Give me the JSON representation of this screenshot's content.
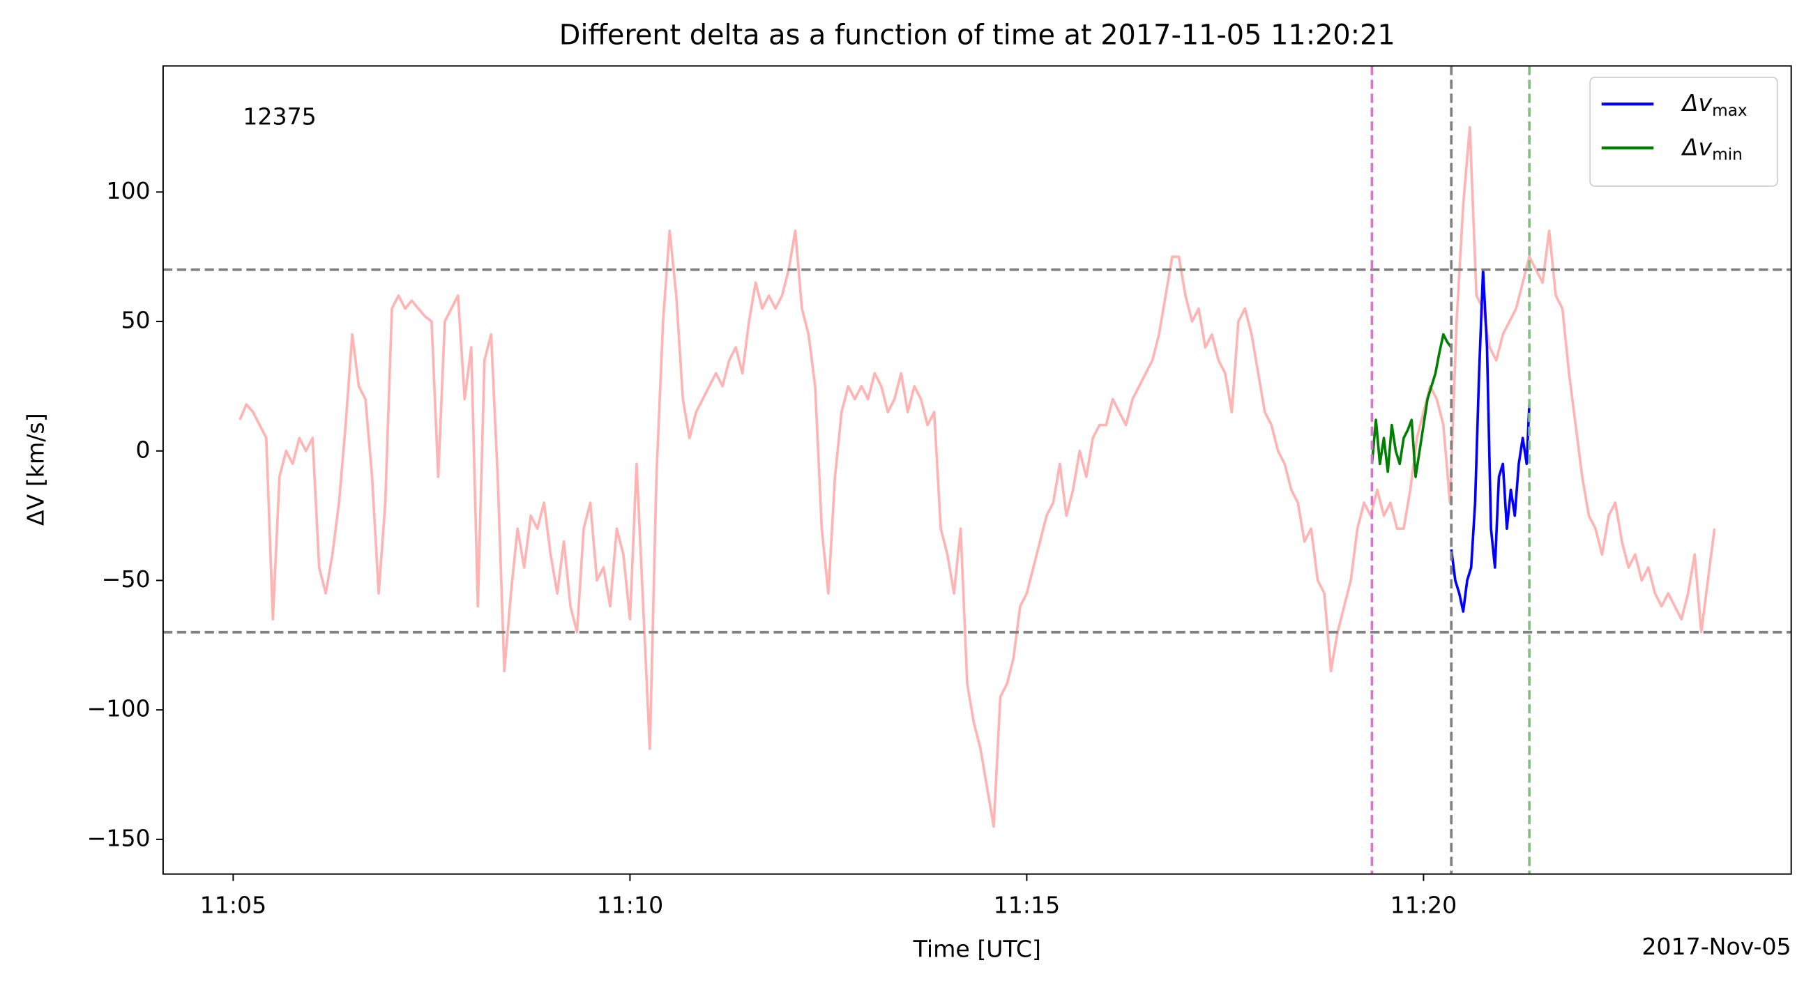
{
  "chart_data": {
    "type": "line",
    "title": "Different delta as a function of time at 2017-11-05 11:20:21",
    "xlabel": "Time [UTC]",
    "ylabel": "ΔV [km/s]",
    "date_label": "2017-Nov-05",
    "annotation": {
      "text": "12375",
      "color": "#ff0000"
    },
    "xlim": [
      "11:04:07",
      "11:24:38"
    ],
    "ylim": [
      -163.4,
      148.7
    ],
    "xticks": [
      {
        "value": "11:05:00",
        "label": "11:05"
      },
      {
        "value": "11:10:00",
        "label": "11:10"
      },
      {
        "value": "11:15:00",
        "label": "11:15"
      },
      {
        "value": "11:20:00",
        "label": "11:20"
      }
    ],
    "yticks": [
      {
        "value": -150,
        "label": "−150"
      },
      {
        "value": -100,
        "label": "−100"
      },
      {
        "value": -50,
        "label": "−50"
      },
      0,
      50,
      100
    ],
    "legend": "upper right",
    "hlines": [
      {
        "y": 70,
        "color": "#808080"
      },
      {
        "y": -70,
        "color": "#808080"
      }
    ],
    "vlines": [
      {
        "x": "11:19:21",
        "color": "#da70d6"
      },
      {
        "x": "11:20:21",
        "color": "#808080"
      },
      {
        "x": "11:21:20",
        "color": "#80c080"
      }
    ],
    "series": [
      {
        "color": "#ffb3b3",
        "x": [
          "11:05:05",
          "11:05:10",
          "11:05:15",
          "11:05:20",
          "11:05:25",
          "11:05:30",
          "11:05:35",
          "11:05:40",
          "11:05:45",
          "11:05:50",
          "11:05:55",
          "11:06:00",
          "11:06:05",
          "11:06:10",
          "11:06:15",
          "11:06:20",
          "11:06:25",
          "11:06:30",
          "11:06:35",
          "11:06:40",
          "11:06:45",
          "11:06:50",
          "11:06:55",
          "11:07:00",
          "11:07:05",
          "11:07:10",
          "11:07:15",
          "11:07:20",
          "11:07:25",
          "11:07:30",
          "11:07:35",
          "11:07:40",
          "11:07:45",
          "11:07:50",
          "11:07:55",
          "11:08:00",
          "11:08:05",
          "11:08:10",
          "11:08:15",
          "11:08:20",
          "11:08:25",
          "11:08:30",
          "11:08:35",
          "11:08:40",
          "11:08:45",
          "11:08:50",
          "11:08:55",
          "11:09:00",
          "11:09:05",
          "11:09:10",
          "11:09:15",
          "11:09:20",
          "11:09:25",
          "11:09:30",
          "11:09:35",
          "11:09:40",
          "11:09:45",
          "11:09:50",
          "11:09:55",
          "11:10:00",
          "11:10:05",
          "11:10:10",
          "11:10:15",
          "11:10:20",
          "11:10:25",
          "11:10:30",
          "11:10:35",
          "11:10:40",
          "11:10:45",
          "11:10:50",
          "11:10:55",
          "11:11:00",
          "11:11:05",
          "11:11:10",
          "11:11:15",
          "11:11:20",
          "11:11:25",
          "11:11:30",
          "11:11:35",
          "11:11:40",
          "11:11:45",
          "11:11:50",
          "11:11:55",
          "11:12:00",
          "11:12:05",
          "11:12:10",
          "11:12:15",
          "11:12:20",
          "11:12:25",
          "11:12:30",
          "11:12:35",
          "11:12:40",
          "11:12:45",
          "11:12:50",
          "11:12:55",
          "11:13:00",
          "11:13:05",
          "11:13:10",
          "11:13:15",
          "11:13:20",
          "11:13:25",
          "11:13:30",
          "11:13:35",
          "11:13:40",
          "11:13:45",
          "11:13:50",
          "11:13:55",
          "11:14:00",
          "11:14:05",
          "11:14:10",
          "11:14:15",
          "11:14:20",
          "11:14:25",
          "11:14:30",
          "11:14:35",
          "11:14:40",
          "11:14:45",
          "11:14:50",
          "11:14:55",
          "11:15:00",
          "11:15:05",
          "11:15:10",
          "11:15:15",
          "11:15:20",
          "11:15:25",
          "11:15:30",
          "11:15:35",
          "11:15:40",
          "11:15:45",
          "11:15:50",
          "11:15:55",
          "11:16:00",
          "11:16:05",
          "11:16:10",
          "11:16:15",
          "11:16:20",
          "11:16:25",
          "11:16:30",
          "11:16:35",
          "11:16:40",
          "11:16:45",
          "11:16:50",
          "11:16:55",
          "11:17:00",
          "11:17:05",
          "11:17:10",
          "11:17:15",
          "11:17:20",
          "11:17:25",
          "11:17:30",
          "11:17:35",
          "11:17:40",
          "11:17:45",
          "11:17:50",
          "11:17:55",
          "11:18:00",
          "11:18:05",
          "11:18:10",
          "11:18:15",
          "11:18:20",
          "11:18:25",
          "11:18:30",
          "11:18:35",
          "11:18:40",
          "11:18:45",
          "11:18:50",
          "11:18:55",
          "11:19:00",
          "11:19:05",
          "11:19:10",
          "11:19:15",
          "11:19:20",
          "11:19:25",
          "11:19:30",
          "11:19:35",
          "11:19:40",
          "11:19:45",
          "11:19:50",
          "11:19:55",
          "11:20:00",
          "11:20:05",
          "11:20:10",
          "11:20:15",
          "11:20:20",
          "11:20:25",
          "11:20:30",
          "11:20:35",
          "11:20:40",
          "11:20:45",
          "11:20:50",
          "11:20:55",
          "11:21:00",
          "11:21:05",
          "11:21:10",
          "11:21:15",
          "11:21:20",
          "11:21:25",
          "11:21:30",
          "11:21:35",
          "11:21:40",
          "11:21:45",
          "11:21:50",
          "11:21:55",
          "11:22:00",
          "11:22:05",
          "11:22:10",
          "11:22:15",
          "11:22:20",
          "11:22:25",
          "11:22:30",
          "11:22:35",
          "11:22:40",
          "11:22:45",
          "11:22:50",
          "11:22:55",
          "11:23:00",
          "11:23:05",
          "11:23:10",
          "11:23:15",
          "11:23:20",
          "11:23:25",
          "11:23:30",
          "11:23:35",
          "11:23:40"
        ],
        "values": [
          12,
          18,
          15,
          10,
          5,
          -65,
          -10,
          0,
          -5,
          5,
          0,
          5,
          -45,
          -55,
          -40,
          -20,
          10,
          45,
          25,
          20,
          -10,
          -55,
          -20,
          55,
          60,
          55,
          58,
          55,
          52,
          50,
          -10,
          50,
          55,
          60,
          20,
          40,
          -60,
          35,
          45,
          -10,
          -85,
          -55,
          -30,
          -45,
          -25,
          -30,
          -20,
          -40,
          -55,
          -35,
          -60,
          -70,
          -30,
          -20,
          -50,
          -45,
          -60,
          -30,
          -40,
          -65,
          -5,
          -60,
          -115,
          -10,
          50,
          85,
          60,
          20,
          5,
          15,
          20,
          25,
          30,
          25,
          35,
          40,
          30,
          50,
          65,
          55,
          60,
          55,
          60,
          70,
          85,
          55,
          45,
          25,
          -30,
          -55,
          -10,
          15,
          25,
          20,
          25,
          20,
          30,
          25,
          15,
          20,
          30,
          15,
          25,
          20,
          10,
          15,
          -30,
          -40,
          -55,
          -30,
          -90,
          -105,
          -115,
          -130,
          -145,
          -95,
          -90,
          -80,
          -60,
          -55,
          -45,
          -35,
          -25,
          -20,
          -5,
          -25,
          -15,
          0,
          -10,
          5,
          10,
          10,
          20,
          15,
          10,
          20,
          25,
          30,
          35,
          45,
          60,
          75,
          75,
          60,
          50,
          55,
          40,
          45,
          35,
          30,
          15,
          50,
          55,
          45,
          30,
          15,
          10,
          0,
          -5,
          -15,
          -20,
          -35,
          -30,
          -50,
          -55,
          -85,
          -70,
          -60,
          -50,
          -30,
          -20,
          -25,
          -15,
          -25,
          -20,
          -30,
          -30,
          -15,
          5,
          15,
          25,
          20,
          10,
          -20,
          50,
          95,
          125,
          60,
          55,
          40,
          35,
          45,
          50,
          55,
          65,
          75,
          70,
          65,
          85,
          60,
          55,
          30,
          10,
          -10,
          -25,
          -30,
          -40,
          -25,
          -20,
          -35,
          -45,
          -40,
          -50,
          -45,
          -55,
          -60,
          -55,
          -60,
          -65,
          -55,
          -40,
          -70,
          -50,
          -30
        ]
      },
      {
        "name": "Δv",
        "subscript": "max",
        "color": "#0000ff",
        "x": [
          "11:20:21",
          "11:20:24",
          "11:20:27",
          "11:20:30",
          "11:20:33",
          "11:20:36",
          "11:20:39",
          "11:20:42",
          "11:20:45",
          "11:20:48",
          "11:20:51",
          "11:20:54",
          "11:20:57",
          "11:21:00",
          "11:21:03",
          "11:21:06",
          "11:21:09",
          "11:21:12",
          "11:21:15",
          "11:21:18",
          "11:21:20"
        ],
        "values": [
          -38,
          -50,
          -55,
          -62,
          -50,
          -45,
          -20,
          30,
          70,
          40,
          -30,
          -45,
          -10,
          -5,
          -30,
          -15,
          -25,
          -5,
          5,
          -5,
          18
        ]
      },
      {
        "name": "Δv",
        "subscript": "min",
        "color": "#008000",
        "x": [
          "11:19:21",
          "11:19:24",
          "11:19:27",
          "11:19:30",
          "11:19:33",
          "11:19:36",
          "11:19:39",
          "11:19:42",
          "11:19:45",
          "11:19:48",
          "11:19:51",
          "11:19:54",
          "11:19:57",
          "11:20:00",
          "11:20:03",
          "11:20:06",
          "11:20:09",
          "11:20:12",
          "11:20:15",
          "11:20:18",
          "11:20:21"
        ],
        "values": [
          -5,
          12,
          -5,
          5,
          -8,
          10,
          0,
          -5,
          5,
          8,
          12,
          -10,
          0,
          10,
          20,
          25,
          30,
          38,
          45,
          42,
          40
        ]
      }
    ]
  }
}
